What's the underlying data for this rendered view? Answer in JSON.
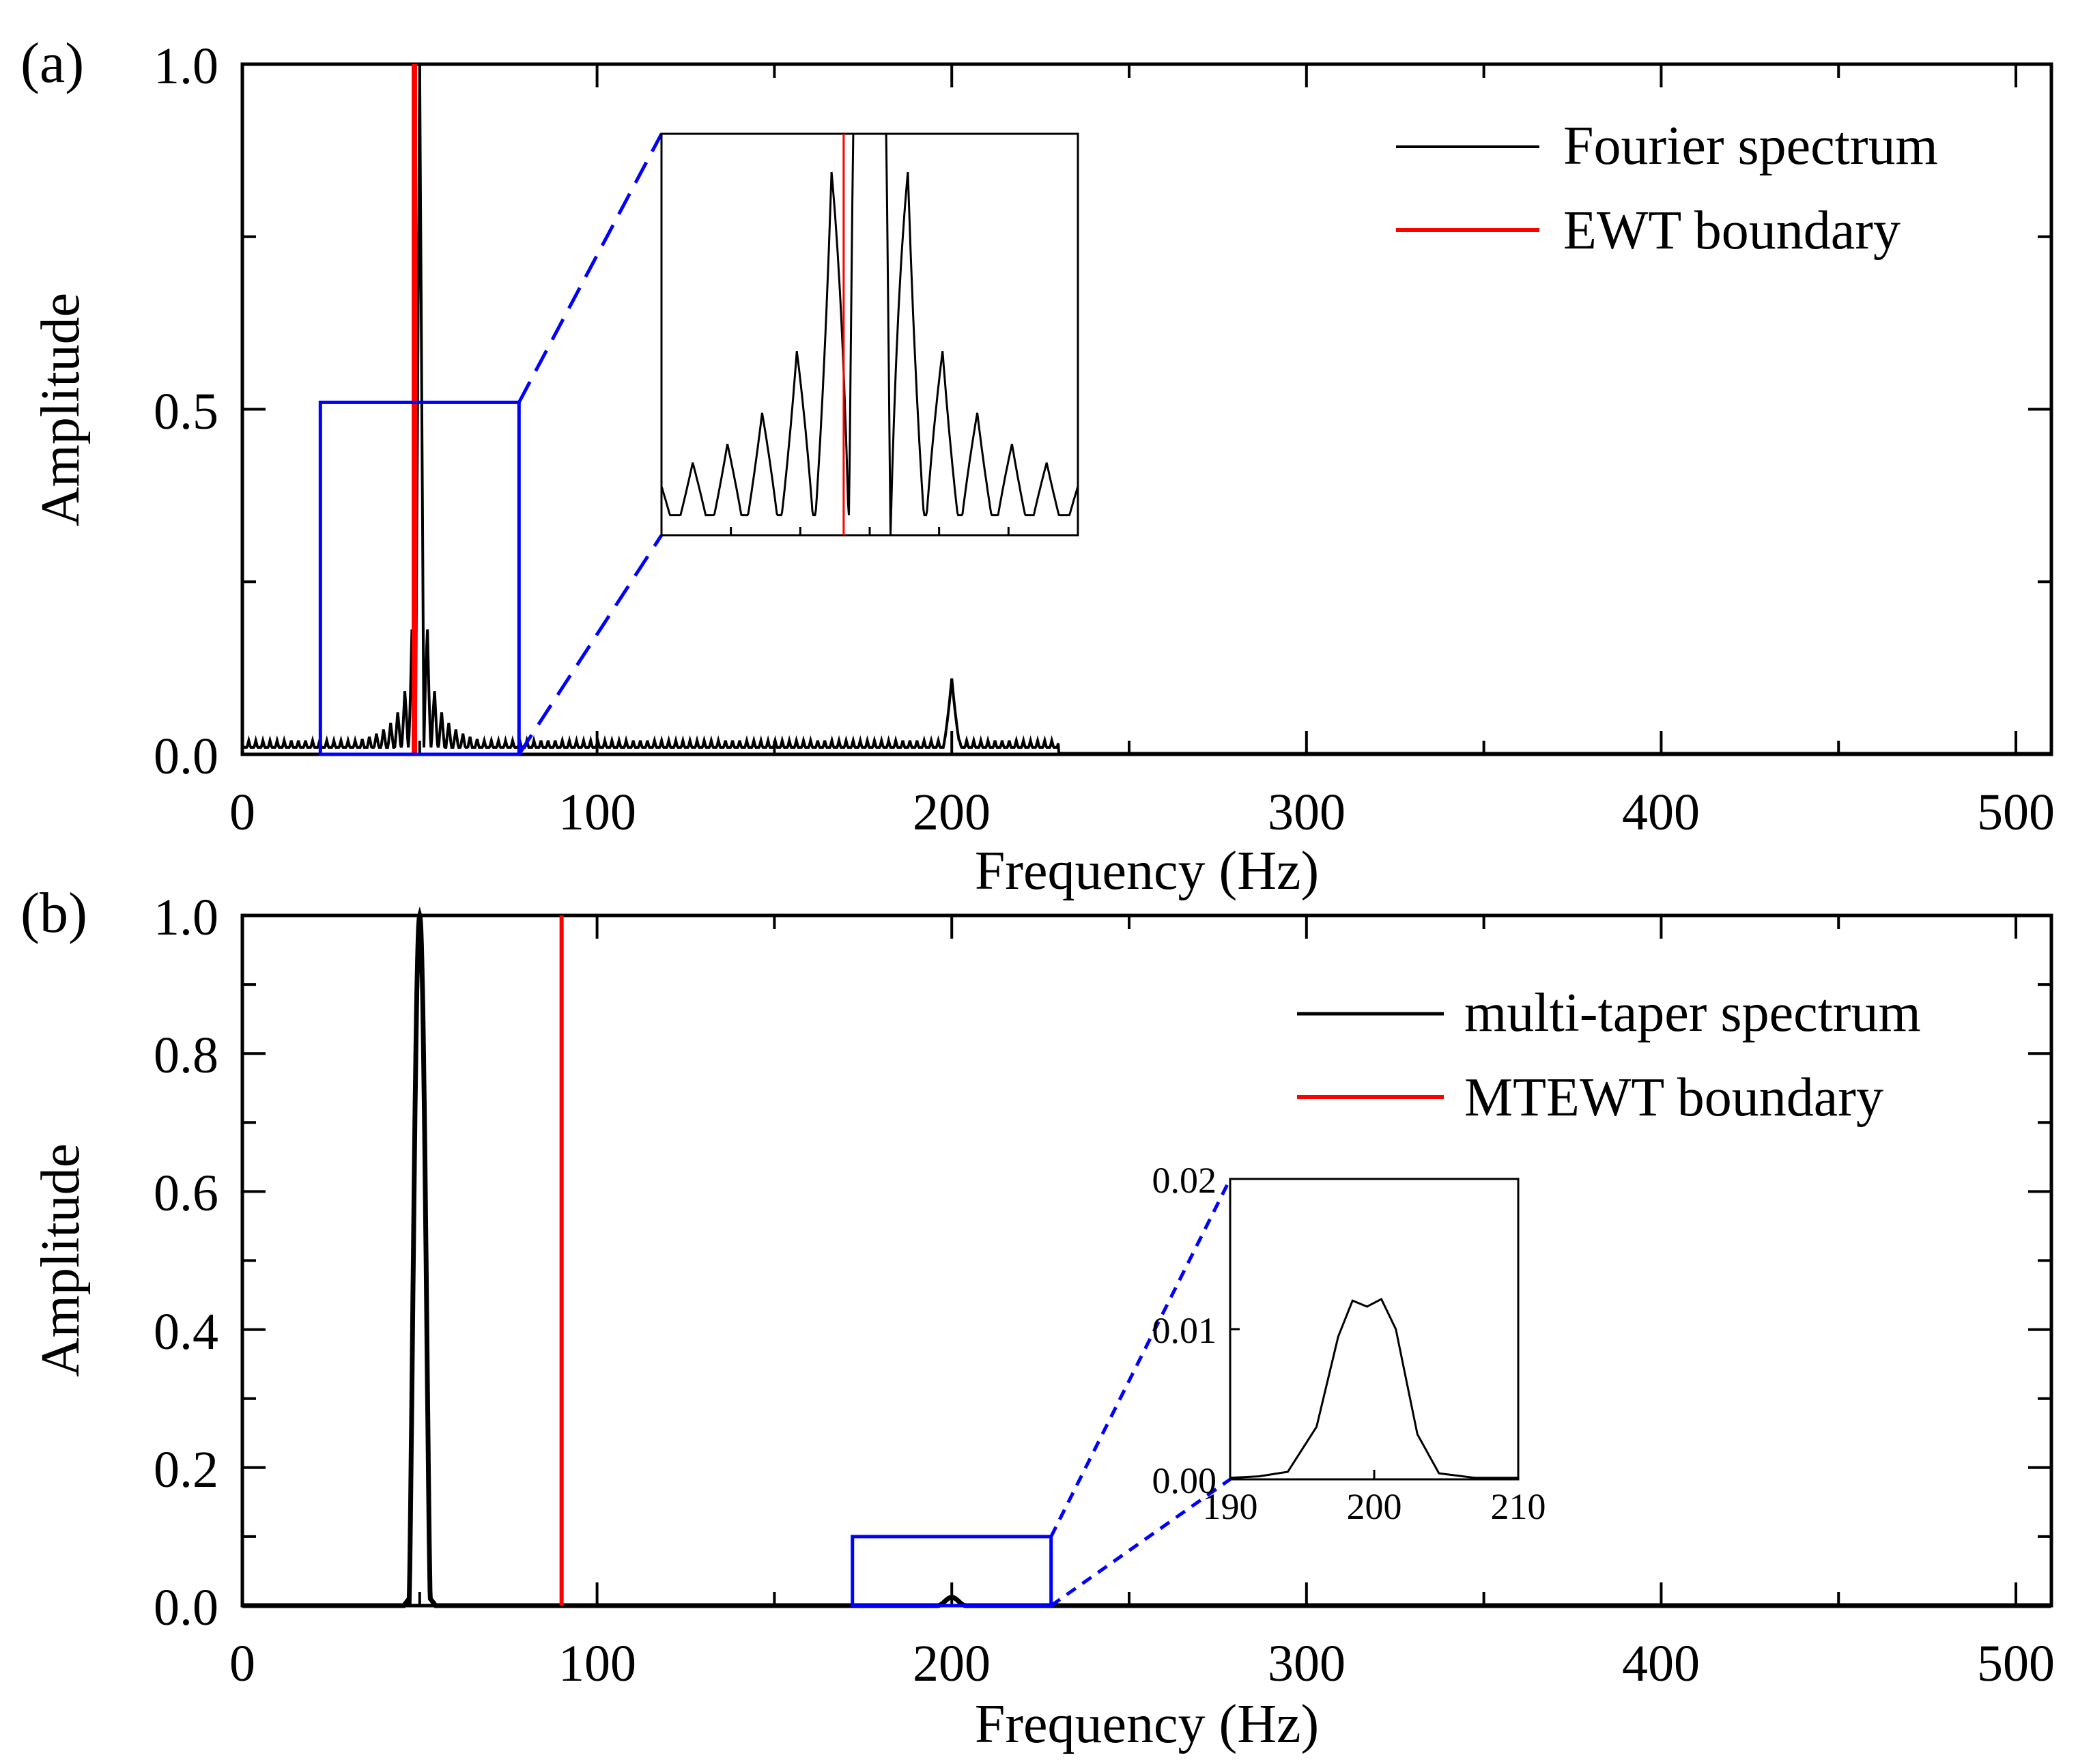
{
  "chart_data": [
    {
      "panel_label": "(a)",
      "type": "line",
      "xlabel": "Frequency (Hz)",
      "ylabel": "Amplitude",
      "xlim": [
        0,
        510
      ],
      "ylim": [
        0,
        1.0
      ],
      "xticks": [
        0,
        100,
        200,
        300,
        400,
        500
      ],
      "xtick_labels": [
        "0",
        "100",
        "200",
        "300",
        "400",
        "500"
      ],
      "yticks": [
        0,
        0.5,
        1.0
      ],
      "ytick_labels": [
        "0.0",
        "0.5",
        "1.0"
      ],
      "legend_position": "top-right",
      "series": [
        {
          "name": "Fourier spectrum",
          "color": "#000000",
          "main_peak": {
            "f": 50,
            "amp": 1.0
          },
          "sidelobe_spacing_hz": 2.0,
          "sidelobe_first_amp": 0.2,
          "floor_amp": 0.02,
          "second_peak": {
            "f": 200,
            "amp": 0.11
          }
        },
        {
          "name": "EWT boundary",
          "color": "#ff0000",
          "x": 48.5
        }
      ],
      "zoom_box": {
        "x0": 22,
        "x1": 78,
        "y0": 0,
        "y1": 0.51,
        "color": "#0000ff"
      },
      "inset": {
        "xlim": [
          38,
          62
        ],
        "ylim": [
          0,
          0.2
        ],
        "boundary_x": 48.5,
        "peak_f": 50
      }
    },
    {
      "panel_label": "(b)",
      "type": "line",
      "xlabel": "Frequency (Hz)",
      "ylabel": "Amplitude",
      "xlim": [
        0,
        510
      ],
      "ylim": [
        0,
        1.0
      ],
      "xticks": [
        0,
        100,
        200,
        300,
        400,
        500
      ],
      "xtick_labels": [
        "0",
        "100",
        "200",
        "300",
        "400",
        "500"
      ],
      "yticks": [
        0,
        0.2,
        0.4,
        0.6,
        0.8,
        1.0
      ],
      "ytick_labels": [
        "0.0",
        "0.2",
        "0.4",
        "0.6",
        "0.8",
        "1.0"
      ],
      "legend_position": "top-right",
      "series": [
        {
          "name": "multi-taper spectrum",
          "color": "#000000",
          "main_peak": {
            "f": 50,
            "amp": 1.0,
            "half_width_hz": 3
          },
          "second_peak": {
            "f": 200,
            "amp": 0.012
          }
        },
        {
          "name": "MTEWT boundary",
          "color": "#ff0000",
          "x": 90
        }
      ],
      "zoom_box": {
        "x0": 172,
        "x1": 228,
        "y0": 0,
        "y1": 0.1,
        "color": "#0000ff"
      },
      "inset": {
        "xlim": [
          190,
          210
        ],
        "ylim": [
          0,
          0.02
        ],
        "xticks": [
          190,
          200,
          210
        ],
        "xtick_labels": [
          "190",
          "200",
          "210"
        ],
        "yticks": [
          0,
          0.01,
          0.02
        ],
        "ytick_labels": [
          "0.00",
          "0.01",
          "0.02"
        ],
        "points": [
          [
            190,
            0.0001
          ],
          [
            192,
            0.0002
          ],
          [
            194,
            0.0005
          ],
          [
            196,
            0.0035
          ],
          [
            197.5,
            0.0095
          ],
          [
            198.5,
            0.0119
          ],
          [
            199.5,
            0.0115
          ],
          [
            200.5,
            0.012
          ],
          [
            201.5,
            0.01
          ],
          [
            203,
            0.003
          ],
          [
            204.5,
            0.0004
          ],
          [
            207,
            0.0001
          ],
          [
            210,
            0.0001
          ]
        ]
      }
    }
  ]
}
